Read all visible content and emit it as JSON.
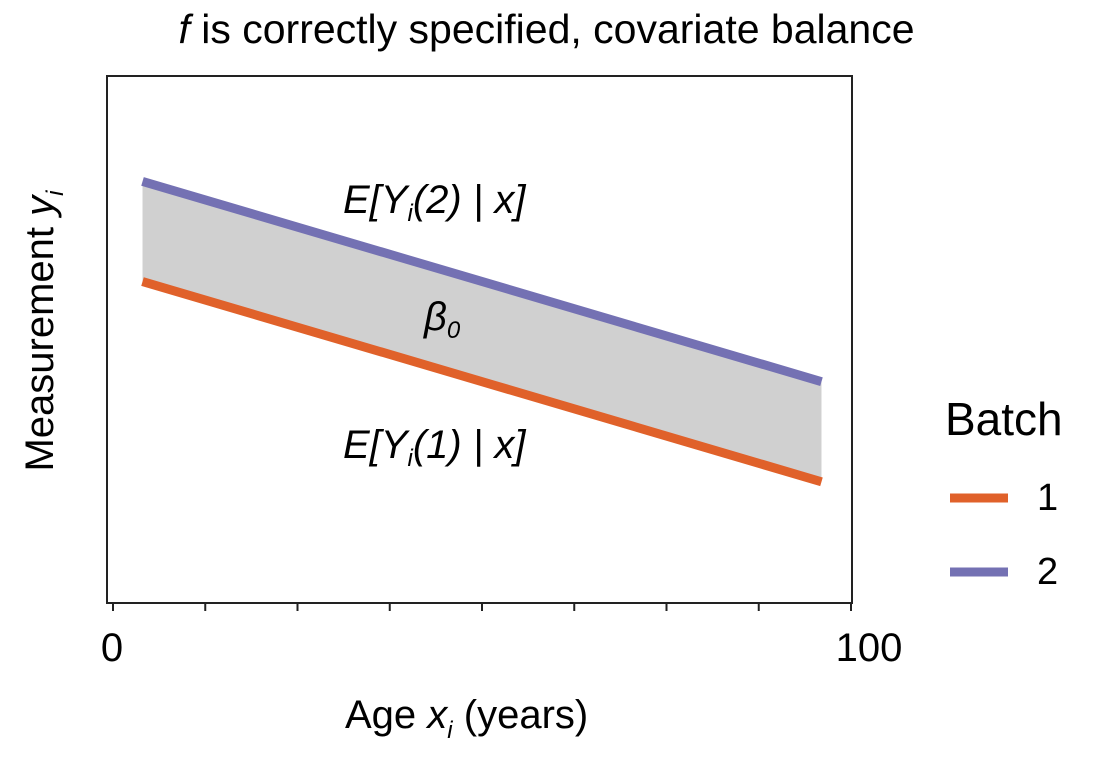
{
  "chart_data": {
    "type": "line",
    "title": {
      "italic": "f",
      "rest": " is correctly specified, covariate balance"
    },
    "xlabel": {
      "pre": "Age ",
      "var": "x",
      "sub": "i",
      "post": " (years)"
    },
    "ylabel": {
      "pre": "Measurement ",
      "var": "y",
      "sub": "i"
    },
    "xlim": [
      0,
      100
    ],
    "ylim": [
      0,
      1
    ],
    "x_tick_labels": [
      {
        "x": 0,
        "label": "0"
      },
      {
        "x": 100,
        "label": "100"
      }
    ],
    "minor_ticks": [
      0,
      12.5,
      25,
      37.5,
      50,
      62.5,
      75,
      87.5,
      100
    ],
    "grid": false,
    "legend": {
      "title": "Batch",
      "placement": "right"
    },
    "series": [
      {
        "name": "1",
        "color": "#e0612a",
        "x": [
          4,
          96
        ],
        "y": [
          0.61,
          0.23
        ]
      },
      {
        "name": "2",
        "color": "#7471b3",
        "x": [
          4,
          96
        ],
        "y": [
          0.8,
          0.42
        ]
      }
    ],
    "band": {
      "between": [
        "1",
        "2"
      ],
      "color": "#d0d0d0"
    },
    "annotations": {
      "top": {
        "pre": "E[Y",
        "sub": "i",
        "post": "(2) | x]"
      },
      "mid": {
        "pre": "β",
        "sub": "0"
      },
      "bottom": {
        "pre": "E[Y",
        "sub": "i",
        "post": "(1) | x]"
      }
    }
  }
}
